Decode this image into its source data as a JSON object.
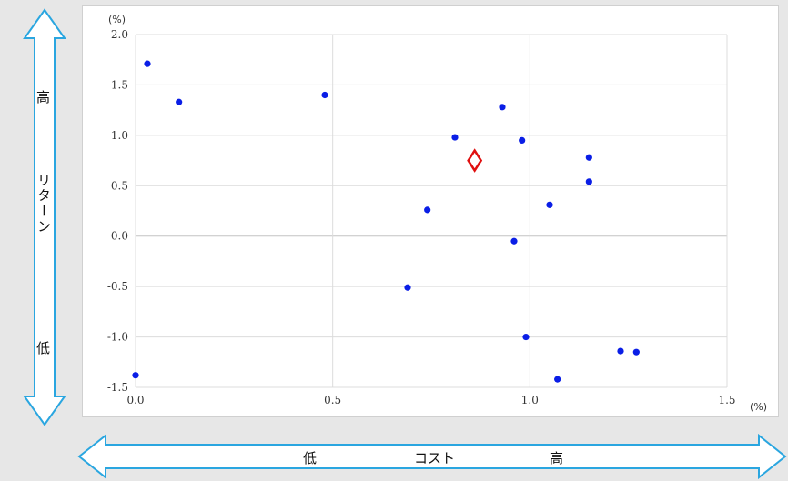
{
  "chart_data": {
    "type": "scatter",
    "xlim": [
      0,
      1.5
    ],
    "ylim": [
      -1.5,
      2.0
    ],
    "x_ticks": [
      "0.0",
      "0.5",
      "1.0",
      "1.5"
    ],
    "y_ticks": [
      "2.0",
      "1.5",
      "1.0",
      "0.5",
      "0.0",
      "-0.5",
      "-1.0",
      "-1.5"
    ],
    "x_ticks_values": [
      0,
      0.5,
      1.0,
      1.5
    ],
    "y_ticks_values": [
      2.0,
      1.5,
      1.0,
      0.5,
      0.0,
      -0.5,
      -1.0,
      -1.5
    ],
    "x_unit": "(%)",
    "y_unit": "(%)",
    "grid": true,
    "points": [
      {
        "x": 0.03,
        "y": 1.71
      },
      {
        "x": 0.11,
        "y": 1.33
      },
      {
        "x": 0.48,
        "y": 1.4
      },
      {
        "x": 0.81,
        "y": 0.98
      },
      {
        "x": 0.93,
        "y": 1.28
      },
      {
        "x": 0.98,
        "y": 0.95
      },
      {
        "x": 1.15,
        "y": 0.78
      },
      {
        "x": 1.15,
        "y": 0.54
      },
      {
        "x": 1.05,
        "y": 0.31
      },
      {
        "x": 0.74,
        "y": 0.26
      },
      {
        "x": 0.96,
        "y": -0.05
      },
      {
        "x": 0.69,
        "y": -0.51
      },
      {
        "x": 0.99,
        "y": -1.0
      },
      {
        "x": 1.23,
        "y": -1.14
      },
      {
        "x": 1.27,
        "y": -1.15
      },
      {
        "x": 1.07,
        "y": -1.42
      },
      {
        "x": 0.0,
        "y": -1.38
      }
    ],
    "highlight": {
      "x": 0.86,
      "y": 0.75
    },
    "point_color": "#0a1ee6",
    "highlight_color": "#e01010"
  },
  "axes_labels": {
    "vertical_high": "高",
    "vertical_title": "リターン",
    "vertical_low": "低",
    "horizontal_low": "低",
    "horizontal_title": "コスト",
    "horizontal_high": "高"
  },
  "colors": {
    "arrow_stroke": "#2aa6e0",
    "arrow_fill": "#ffffff",
    "grid": "#dcdcdc"
  }
}
